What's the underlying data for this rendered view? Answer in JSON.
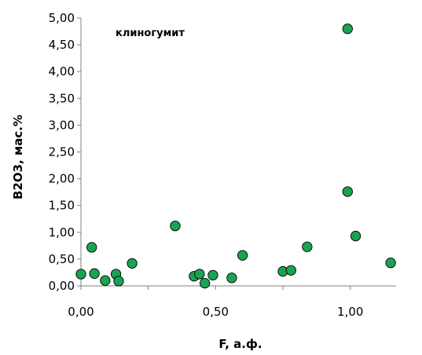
{
  "chart_data": {
    "type": "scatter",
    "title": "",
    "annotation": "клиногумит",
    "xlabel": "F, а.ф.",
    "ylabel": "B2O3, мас.%",
    "xlim": [
      0,
      1.17
    ],
    "ylim": [
      0,
      5.0
    ],
    "x_ticks": [
      0,
      0.5,
      1.0
    ],
    "x_tick_labels": [
      "0,00",
      "0,50",
      "1,00"
    ],
    "y_ticks": [
      0,
      0.5,
      1.0,
      1.5,
      2.0,
      2.5,
      3.0,
      3.5,
      4.0,
      4.5,
      5.0
    ],
    "y_tick_labels": [
      "0,00",
      "0,50",
      "1,00",
      "1,50",
      "2,00",
      "2,50",
      "3,00",
      "3,50",
      "4,00",
      "4,50",
      "5,00"
    ],
    "grid": false,
    "legend": "none",
    "marker_color": "#1aa352",
    "points": [
      {
        "x": 0.0,
        "y": 0.22
      },
      {
        "x": 0.04,
        "y": 0.72
      },
      {
        "x": 0.05,
        "y": 0.23
      },
      {
        "x": 0.09,
        "y": 0.1
      },
      {
        "x": 0.13,
        "y": 0.22
      },
      {
        "x": 0.14,
        "y": 0.09
      },
      {
        "x": 0.19,
        "y": 0.42
      },
      {
        "x": 0.35,
        "y": 1.12
      },
      {
        "x": 0.42,
        "y": 0.18
      },
      {
        "x": 0.44,
        "y": 0.22
      },
      {
        "x": 0.46,
        "y": 0.05
      },
      {
        "x": 0.49,
        "y": 0.2
      },
      {
        "x": 0.56,
        "y": 0.15
      },
      {
        "x": 0.6,
        "y": 0.57
      },
      {
        "x": 0.75,
        "y": 0.27
      },
      {
        "x": 0.78,
        "y": 0.29
      },
      {
        "x": 0.84,
        "y": 0.73
      },
      {
        "x": 0.99,
        "y": 4.8
      },
      {
        "x": 0.99,
        "y": 1.76
      },
      {
        "x": 1.02,
        "y": 0.93
      },
      {
        "x": 1.15,
        "y": 0.43
      }
    ]
  }
}
